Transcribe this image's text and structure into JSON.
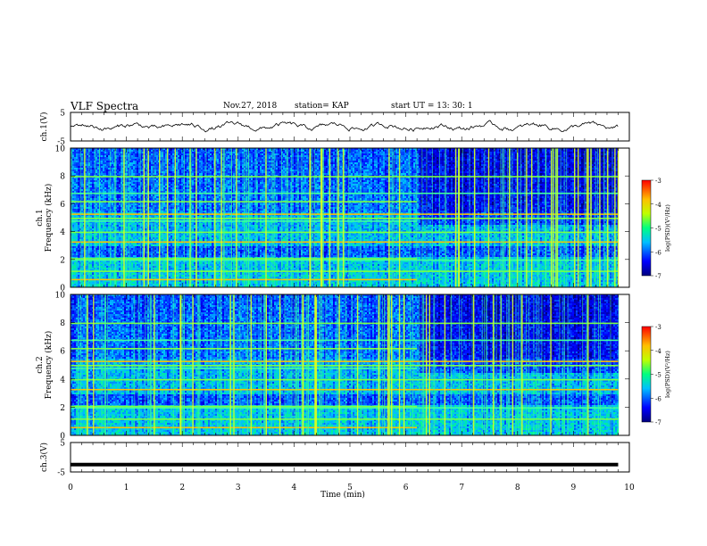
{
  "header": {
    "title": "VLF Spectra",
    "date": "Nov.27, 2018",
    "station": "station= KAP",
    "start_ut": "start  UT =   13: 30: 1"
  },
  "colorbar_label": "log(PSD)(V²/Hz)",
  "chart_data": [
    {
      "type": "line",
      "name": "ch1-waveform",
      "ylabel": "ch.1(V)",
      "yticks": [
        "5",
        "-5"
      ],
      "ylim": [
        -5,
        5
      ],
      "x_range": [
        0,
        9.8
      ]
    },
    {
      "type": "heatmap",
      "name": "ch1-spectrogram",
      "ylabel": "ch.1\nFrequency (kHz)",
      "ylim": [
        0,
        10
      ],
      "yticks": [
        "0",
        "2",
        "4",
        "6",
        "8",
        "10"
      ],
      "x_range": [
        0,
        9.8
      ],
      "colorbar": {
        "ticks": [
          "-3",
          "-4",
          "-5",
          "-6",
          "-7"
        ],
        "range": [
          -7,
          -3
        ]
      }
    },
    {
      "type": "heatmap",
      "name": "ch2-spectrogram",
      "ylabel": "ch.2\nFrequency (kHz)",
      "ylim": [
        0,
        10
      ],
      "yticks": [
        "0",
        "2",
        "4",
        "6",
        "8",
        "10"
      ],
      "x_range": [
        0,
        9.8
      ],
      "colorbar": {
        "ticks": [
          "-3",
          "-4",
          "-5",
          "-6",
          "-7"
        ],
        "range": [
          -7,
          -3
        ]
      }
    },
    {
      "type": "line",
      "name": "ch3-waveform",
      "ylabel": "ch.3(V)",
      "yticks": [
        "5",
        "-5"
      ],
      "ylim": [
        -5,
        5
      ],
      "x_range": [
        0,
        9.8
      ],
      "constant_value": -2.5
    }
  ],
  "xaxis": {
    "label": "Time  (min)",
    "ticks": [
      "0",
      "1",
      "2",
      "3",
      "4",
      "5",
      "6",
      "7",
      "8",
      "9",
      "10"
    ],
    "xlim": [
      0,
      10
    ]
  }
}
